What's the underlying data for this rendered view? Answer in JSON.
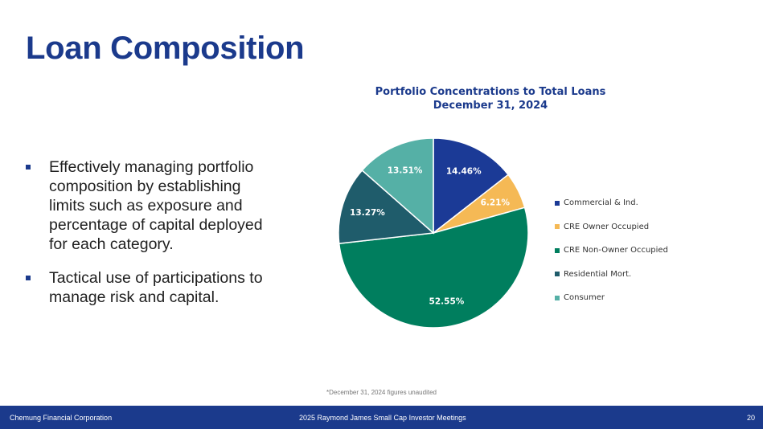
{
  "slide": {
    "title": "Loan Composition",
    "bullets": [
      "Effectively managing portfolio composition by establishing limits such as exposure and percentage of capital deployed for each category.",
      "Tactical use of participations to manage risk and capital."
    ],
    "footnote": "*December 31, 2024 figures unaudited"
  },
  "footer": {
    "company": "Chemung Financial Corporation",
    "event": "2025 Raymond James Small Cap Investor Meetings",
    "page_number": "20"
  },
  "colors": {
    "brand": "#1b3a8c",
    "footer_bg": "#1b3a8c"
  },
  "chart_data": {
    "type": "pie",
    "title": "Portfolio Concentrations to Total Loans",
    "subtitle": "December 31, 2024",
    "legend_position": "right",
    "categories": [
      "Commercial & Ind.",
      "CRE Owner Occupied",
      "CRE Non-Owner Occupied",
      "Residential Mort.",
      "Consumer"
    ],
    "values": [
      14.46,
      6.21,
      52.55,
      13.27,
      13.51
    ],
    "labels": [
      "14.46%",
      "6.21%",
      "52.55%",
      "13.27%",
      "13.51%"
    ],
    "colors": [
      "#1b3a96",
      "#f5b955",
      "#007e5e",
      "#1f5c6b",
      "#55b0a6"
    ]
  }
}
